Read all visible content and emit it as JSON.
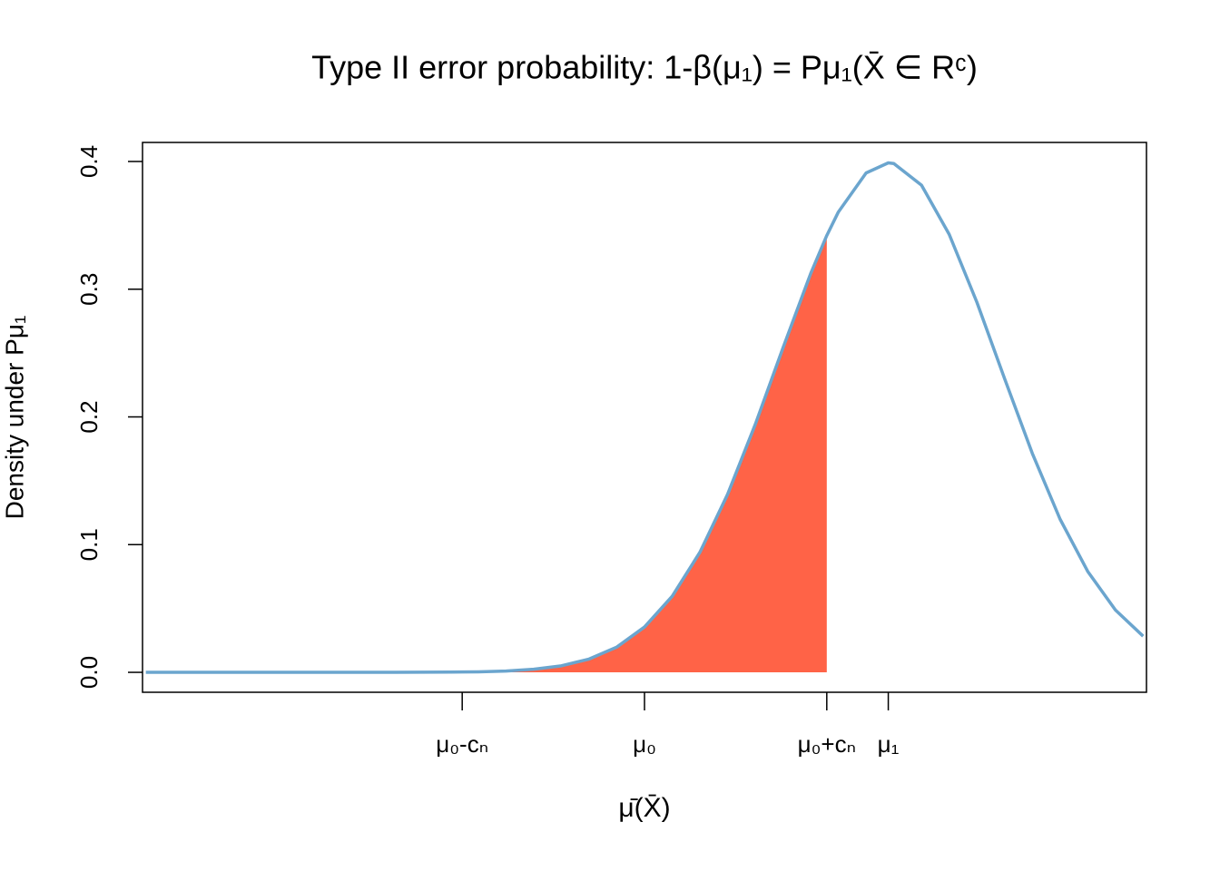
{
  "chart_data": {
    "type": "line",
    "title": "Type II error probability: 1-β(μ₁) = Pμ₁(X̄ ∈ Rᶜ)",
    "xlabel": "μ̄(X̄)",
    "ylabel": "Density under Pμ₁",
    "xlim": [
      -4.53,
      4.53
    ],
    "ylim": [
      -0.0156,
      0.4149
    ],
    "xticks": [
      {
        "value": -1.645,
        "label": "μ₀-cₙ"
      },
      {
        "value": 0,
        "label": "μ₀"
      },
      {
        "value": 1.645,
        "label": "μ₀+cₙ"
      },
      {
        "value": 2.2,
        "label": "μ₁"
      }
    ],
    "yticks": [
      {
        "value": 0,
        "label": "0.0"
      },
      0.1,
      0.2,
      0.3,
      0.4
    ],
    "series": [
      {
        "kind": "area",
        "color": "#ff6347",
        "x": [
          -4.5,
          -4.25,
          -4.0,
          -3.75,
          -3.5,
          -3.25,
          -3.0,
          -2.75,
          -2.5,
          -2.25,
          -2.0,
          -1.75,
          -1.5,
          -1.25,
          -1.0,
          -0.75,
          -0.5,
          -0.25,
          0,
          0.25,
          0.5,
          0.75,
          1.0,
          1.25,
          1.5,
          1.645
        ],
        "values": [
          0,
          0,
          0,
          0,
          0,
          0,
          0,
          0,
          0,
          0,
          0.0001,
          0.0002,
          0.0004,
          0.001,
          0.0024,
          0.0051,
          0.0104,
          0.0198,
          0.0355,
          0.0596,
          0.094,
          0.1394,
          0.1942,
          0.2541,
          0.3123,
          0.342
        ]
      },
      {
        "kind": "line",
        "color": "#6ba5ce",
        "x": [
          -4.5,
          -4.25,
          -4.0,
          -3.75,
          -3.5,
          -3.25,
          -3.0,
          -2.75,
          -2.5,
          -2.25,
          -2.0,
          -1.75,
          -1.5,
          -1.25,
          -1.0,
          -0.75,
          -0.5,
          -0.25,
          0,
          0.25,
          0.5,
          0.75,
          1.0,
          1.25,
          1.5,
          1.645,
          1.75,
          2.0,
          2.2,
          2.25,
          2.5,
          2.75,
          3.0,
          3.25,
          3.5,
          3.75,
          4.0,
          4.25,
          4.5
        ],
        "values": [
          0,
          0,
          0,
          0,
          0,
          0,
          0,
          0,
          0,
          0,
          0.0001,
          0.0002,
          0.0004,
          0.001,
          0.0024,
          0.0051,
          0.0104,
          0.0198,
          0.0355,
          0.0596,
          0.094,
          0.1394,
          0.1942,
          0.2541,
          0.3123,
          0.342,
          0.3605,
          0.391,
          0.3989,
          0.3984,
          0.3814,
          0.3429,
          0.2897,
          0.2299,
          0.1714,
          0.12,
          0.079,
          0.0488,
          0.0283
        ]
      }
    ]
  }
}
